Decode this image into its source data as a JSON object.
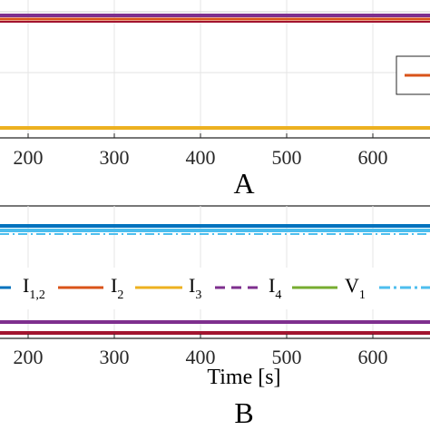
{
  "chart_data": [
    {
      "type": "line",
      "panel_label": "A",
      "x_ticks": [
        "200",
        "300",
        "400",
        "500",
        "600"
      ],
      "grid": true,
      "series": [
        {
          "color": "#7E2F8E",
          "style": "solid"
        },
        {
          "color": "#D95319",
          "style": "solid"
        },
        {
          "color": "#A2142F",
          "style": "solid"
        },
        {
          "color": "#EDB120",
          "style": "solid"
        }
      ],
      "legend": {
        "placement": "right",
        "partially_visible": true
      }
    },
    {
      "type": "line",
      "panel_label": "B",
      "xlabel": "Time [s]",
      "x_ticks": [
        "200",
        "300",
        "400",
        "500",
        "600"
      ],
      "grid": true,
      "legend": {
        "placement": "inside-middle",
        "orientation": "horizontal",
        "entries": [
          {
            "main": "I",
            "sub": "1,2",
            "color": "#0072BD",
            "style": "solid"
          },
          {
            "main": "I",
            "sub": "2",
            "color": "#D95319",
            "style": "solid"
          },
          {
            "main": "I",
            "sub": "3",
            "color": "#EDB120",
            "style": "solid"
          },
          {
            "main": "I",
            "sub": "4",
            "color": "#7E2F8E",
            "style": "dashed"
          },
          {
            "main": "V",
            "sub": "1",
            "color": "#77AC30",
            "style": "solid"
          },
          {
            "main": "",
            "sub": "",
            "color": "#4DBEEE",
            "style": "dashdot"
          }
        ]
      },
      "series": [
        {
          "color": "#0072BD",
          "style": "solid"
        },
        {
          "color": "#4DBEEE",
          "style": "dashdot"
        },
        {
          "color": "#7E2F8E",
          "style": "solid"
        },
        {
          "color": "#A2142F",
          "style": "solid"
        }
      ]
    }
  ]
}
